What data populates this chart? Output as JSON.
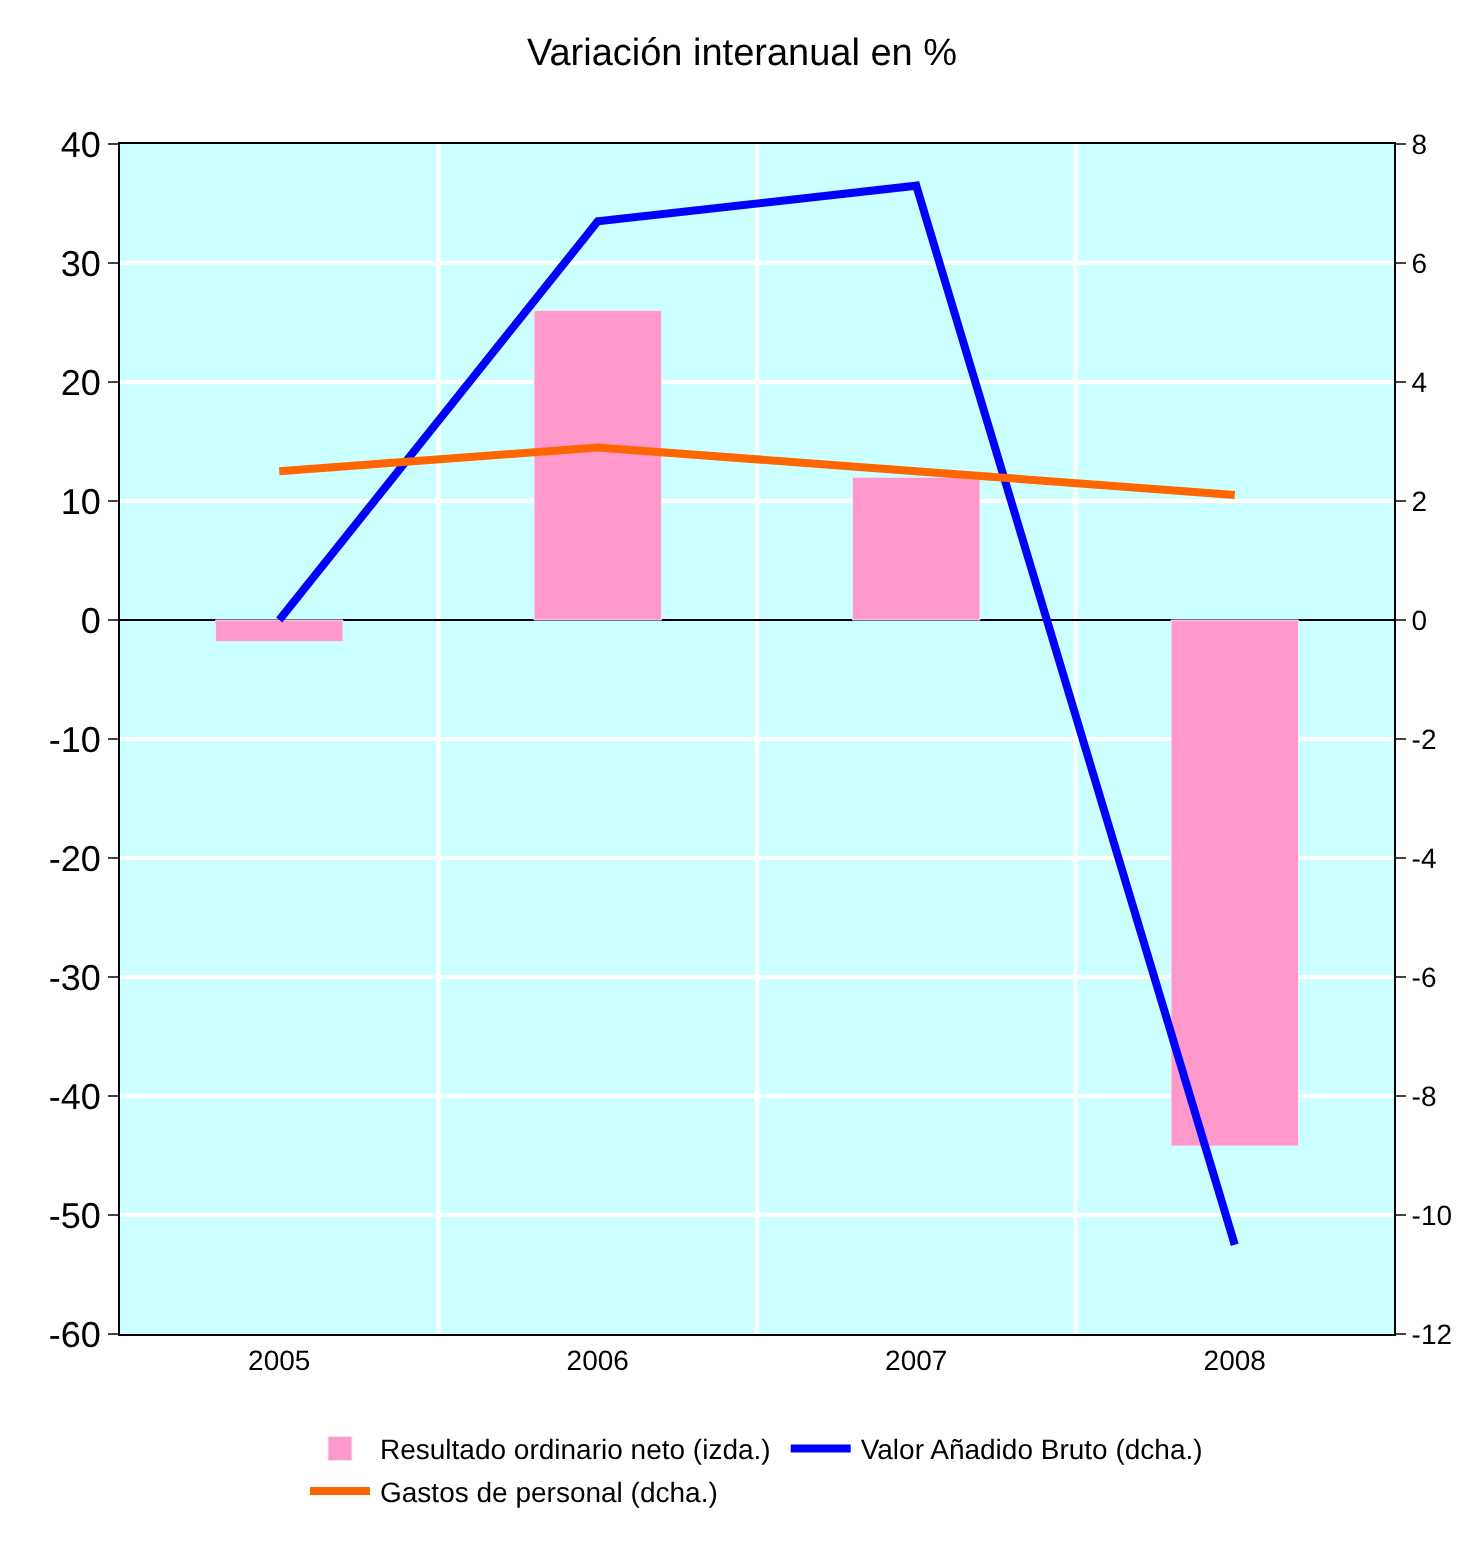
{
  "chart_data": {
    "type": "bar",
    "title": "Variación interanual en %",
    "categories": [
      "2005",
      "2006",
      "2007",
      "2008"
    ],
    "series": [
      {
        "name": "Resultado ordinario neto (izda.)",
        "color": "#ff99cc",
        "values": [
          -1.8,
          26,
          12,
          -44.2
        ]
      },
      {
        "name": "Valor Añadido Bruto (dcha.)",
        "color": "#0000ff",
        "type": "line",
        "axis": "y2",
        "values": [
          0,
          6.7,
          7.3,
          -10.5
        ]
      },
      {
        "name": "Gastos de personal (dcha.)",
        "color": "#ff6600",
        "type": "line",
        "axis": "y2",
        "values": [
          2.5,
          2.9,
          2.5,
          2.1
        ]
      }
    ],
    "ylim": [
      -60,
      40
    ],
    "yticks": [
      -60,
      -50,
      -40,
      -30,
      -20,
      -10,
      0,
      10,
      20,
      30,
      40
    ],
    "y2lim": [
      -12,
      8
    ],
    "y2ticks": [
      -12,
      -10,
      -8,
      -6,
      -4,
      -2,
      0,
      2,
      4,
      6,
      8
    ],
    "grid": true,
    "legend": "bottom",
    "marker": "none",
    "line_style": "solid"
  }
}
